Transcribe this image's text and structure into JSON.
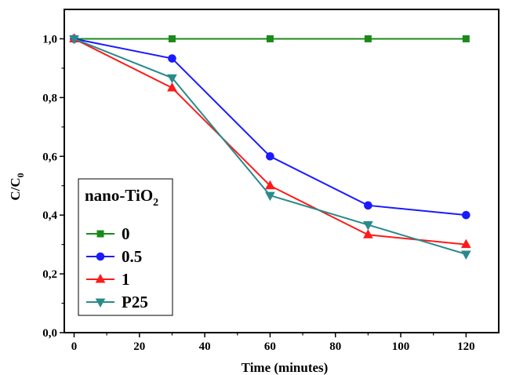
{
  "chart_data": {
    "type": "line",
    "x": [
      0,
      30,
      60,
      90,
      120
    ],
    "xlabel": "Time (minutes)",
    "ylabel_main": "C/C",
    "ylabel_sub": "0",
    "xlim": [
      -3,
      130
    ],
    "ylim": [
      0,
      1.1
    ],
    "xticks": [
      0,
      20,
      40,
      60,
      80,
      100,
      120
    ],
    "xtick_labels": [
      "0",
      "20",
      "40",
      "60",
      "80",
      "100",
      "120"
    ],
    "yticks": [
      0,
      0.2,
      0.4,
      0.6,
      0.8,
      1.0
    ],
    "ytick_labels": [
      "0,0",
      "0,2",
      "0,4",
      "0,6",
      "0,8",
      "1,0"
    ],
    "grid": false,
    "legend": {
      "placement": "bottom-left",
      "title_main": "nano-TiO",
      "title_sub": "2"
    },
    "series": [
      {
        "name": "0",
        "color": "#1a8a1a",
        "marker": "square",
        "values": [
          1.0,
          1.0,
          1.0,
          1.0,
          1.0
        ]
      },
      {
        "name": "0.5",
        "color": "#1a1aff",
        "marker": "circle",
        "values": [
          1.0,
          0.933,
          0.6,
          0.433,
          0.4
        ]
      },
      {
        "name": "1",
        "color": "#ff1a1a",
        "marker": "triangle-up",
        "values": [
          1.0,
          0.833,
          0.5,
          0.333,
          0.3
        ]
      },
      {
        "name": "P25",
        "color": "#2a8a8a",
        "marker": "triangle-down",
        "values": [
          1.0,
          0.867,
          0.467,
          0.367,
          0.267
        ]
      }
    ]
  }
}
